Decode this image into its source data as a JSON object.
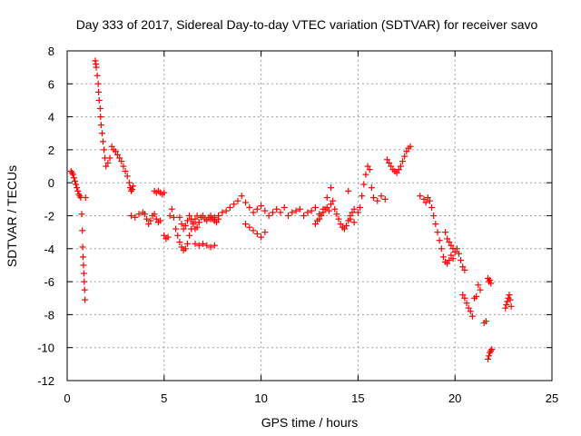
{
  "chart_data": {
    "type": "scatter",
    "title": "Day 333 of 2017, Sidereal Day-to-day VTEC variation (SDTVAR) for receiver savo",
    "xlabel": "GPS time / hours",
    "ylabel": "SDTVAR / TECUs",
    "xlim": [
      0,
      25
    ],
    "ylim": [
      -12,
      8
    ],
    "xticks": [
      0,
      5,
      10,
      15,
      20,
      25
    ],
    "yticks": [
      -12,
      -10,
      -8,
      -6,
      -4,
      -2,
      0,
      2,
      4,
      6,
      8
    ],
    "grid": true,
    "marker": "+",
    "color": "#ff0000",
    "series": [
      {
        "name": "SDTVAR",
        "x": [
          0.2,
          0.25,
          0.3,
          0.35,
          0.4,
          0.45,
          0.5,
          0.55,
          0.6,
          0.65,
          0.7,
          0.75,
          0.78,
          0.8,
          0.82,
          0.84,
          0.86,
          0.88,
          0.9,
          0.92,
          0.95,
          1.45,
          1.48,
          1.5,
          1.55,
          1.6,
          1.62,
          1.65,
          1.7,
          1.72,
          1.75,
          1.8,
          1.85,
          1.9,
          1.95,
          2.0,
          2.1,
          2.2,
          2.3,
          2.4,
          2.5,
          2.6,
          2.7,
          2.8,
          2.9,
          3.0,
          3.1,
          3.2,
          3.25,
          3.3,
          3.35,
          3.4,
          3.3,
          3.5,
          3.7,
          3.9,
          4.0,
          4.1,
          4.2,
          4.3,
          4.4,
          4.5,
          4.6,
          4.7,
          4.8,
          4.5,
          4.6,
          4.7,
          4.8,
          4.9,
          5.0,
          5.0,
          5.1,
          5.2,
          5.3,
          5.4,
          5.5,
          5.6,
          5.7,
          5.8,
          5.9,
          6.0,
          6.1,
          6.2,
          6.3,
          6.4,
          6.5,
          6.6,
          6.7,
          6.8,
          5.8,
          5.9,
          6.0,
          6.1,
          6.2,
          6.3,
          6.4,
          6.5,
          6.6,
          6.7,
          6.8,
          6.9,
          7.0,
          7.1,
          7.2,
          7.3,
          7.4,
          7.5,
          7.6,
          7.7,
          7.8,
          6.6,
          6.8,
          7.0,
          7.2,
          7.4,
          7.6,
          7.4,
          7.6,
          7.8,
          8.0,
          8.2,
          8.4,
          8.6,
          8.8,
          9.0,
          9.2,
          9.4,
          9.6,
          9.8,
          10.0,
          10.2,
          10.4,
          10.6,
          10.8,
          11.0,
          9.2,
          9.4,
          9.6,
          9.8,
          10.0,
          10.2,
          11.2,
          11.4,
          11.6,
          11.8,
          12.0,
          12.2,
          12.4,
          12.6,
          12.8,
          13.0,
          13.2,
          13.4,
          13.6,
          12.8,
          12.9,
          13.0,
          13.1,
          13.2,
          13.3,
          13.4,
          13.5,
          13.6,
          13.7,
          13.8,
          13.9,
          14.0,
          14.1,
          14.2,
          14.3,
          14.4,
          14.5,
          14.6,
          14.7,
          14.8,
          14.5,
          14.6,
          14.8,
          15.0,
          15.1,
          15.2,
          15.3,
          15.4,
          15.5,
          15.6,
          15.7,
          15.8,
          16.0,
          16.2,
          16.4,
          16.5,
          16.6,
          16.7,
          16.8,
          16.9,
          17.0,
          17.1,
          17.2,
          17.3,
          17.4,
          17.5,
          17.6,
          17.7,
          18.2,
          18.4,
          18.5,
          18.6,
          18.7,
          18.8,
          18.9,
          19.0,
          19.1,
          19.2,
          19.3,
          19.4,
          19.5,
          19.6,
          19.7,
          19.8,
          19.9,
          19.5,
          19.6,
          19.7,
          19.8,
          19.9,
          20.0,
          20.1,
          20.2,
          20.3,
          20.4,
          20.5,
          20.4,
          20.5,
          20.6,
          20.7,
          20.8,
          20.9,
          21.0,
          21.1,
          21.2,
          21.3,
          21.5,
          21.6,
          21.7,
          21.75,
          21.8,
          21.85,
          21.9,
          21.7,
          21.75,
          21.8,
          21.85,
          22.6,
          22.65,
          22.7,
          22.75,
          22.8,
          22.85,
          22.9
        ],
        "y": [
          0.7,
          0.6,
          0.5,
          0.3,
          0.1,
          -0.1,
          -0.3,
          -0.5,
          -0.7,
          -0.8,
          -0.9,
          -1.9,
          -2.9,
          -3.9,
          -4.5,
          -5.0,
          -5.5,
          -6.0,
          -6.5,
          -7.1,
          -0.9,
          7.4,
          7.2,
          7.0,
          6.5,
          6.0,
          5.5,
          5.0,
          4.5,
          4.0,
          3.5,
          3.0,
          2.5,
          2.0,
          1.5,
          1.0,
          1.2,
          1.5,
          2.2,
          2.0,
          1.9,
          1.7,
          1.5,
          1.3,
          1.0,
          0.7,
          0.4,
          0.0,
          -0.3,
          -0.5,
          -0.4,
          -0.2,
          -2.0,
          -2.1,
          -1.9,
          -1.8,
          -1.9,
          -2.2,
          -2.5,
          -2.3,
          -2.0,
          -1.9,
          -2.2,
          -2.4,
          -2.3,
          -0.5,
          -0.6,
          -0.5,
          -0.6,
          -0.7,
          -0.6,
          -3.2,
          -3.4,
          -3.3,
          -2.0,
          -1.6,
          -2.1,
          -2.8,
          -3.2,
          -3.6,
          -3.9,
          -4.1,
          -4.0,
          -3.7,
          -3.2,
          -2.8,
          -2.4,
          -2.2,
          -2.0,
          -2.4,
          -2.1,
          -2.5,
          -2.8,
          -2.6,
          -2.3,
          -2.0,
          -2.2,
          -2.5,
          -2.8,
          -2.7,
          -2.4,
          -2.1,
          -2.0,
          -2.2,
          -2.3,
          -2.1,
          -2.0,
          -2.2,
          -2.3,
          -2.4,
          -2.2,
          -3.7,
          -3.8,
          -3.7,
          -3.8,
          -3.9,
          -3.8,
          -2.2,
          -2.1,
          -2.0,
          -1.8,
          -1.7,
          -1.5,
          -1.3,
          -1.1,
          -0.8,
          -1.2,
          -1.5,
          -1.8,
          -1.6,
          -1.4,
          -1.7,
          -2.0,
          -1.8,
          -1.6,
          -1.8,
          -2.5,
          -2.7,
          -2.9,
          -3.1,
          -3.3,
          -3.0,
          -1.5,
          -2.0,
          -1.8,
          -1.7,
          -1.6,
          -2.0,
          -1.8,
          -1.7,
          -1.5,
          -1.9,
          -1.6,
          -0.9,
          -0.3,
          -2.5,
          -2.3,
          -2.2,
          -2.0,
          -1.8,
          -1.6,
          -1.5,
          -1.7,
          -1.3,
          -1.1,
          -1.6,
          -1.9,
          -2.2,
          -2.5,
          -2.7,
          -2.8,
          -2.6,
          -2.3,
          -2.0,
          -1.8,
          -1.6,
          -0.5,
          -2.2,
          -2.4,
          -1.8,
          -1.5,
          -0.8,
          -0.1,
          0.5,
          1.0,
          0.8,
          -0.3,
          -0.9,
          -1.1,
          -0.8,
          -1.0,
          1.4,
          1.2,
          1.0,
          0.8,
          0.7,
          0.6,
          0.8,
          1.0,
          1.3,
          1.6,
          1.9,
          2.1,
          2.2,
          -0.8,
          -1.0,
          -1.2,
          -0.9,
          -1.1,
          -1.5,
          -2.0,
          -2.5,
          -3.0,
          -3.5,
          -4.0,
          -4.5,
          -4.8,
          -4.9,
          -4.7,
          -4.4,
          -4.6,
          -3.0,
          -3.4,
          -3.6,
          -3.8,
          -4.0,
          -4.2,
          -4.0,
          -4.3,
          -4.7,
          -5.1,
          -5.3,
          -6.8,
          -7.0,
          -7.3,
          -7.6,
          -7.8,
          -8.1,
          -7.0,
          -6.9,
          -6.2,
          -6.5,
          -8.5,
          -8.4,
          -10.7,
          -10.5,
          -10.3,
          -10.2,
          -10.1,
          -5.8,
          -6.0,
          -5.9,
          -6.1,
          -7.6,
          -7.4,
          -7.2,
          -7.0,
          -6.8,
          -7.1,
          -7.5
        ]
      }
    ]
  }
}
